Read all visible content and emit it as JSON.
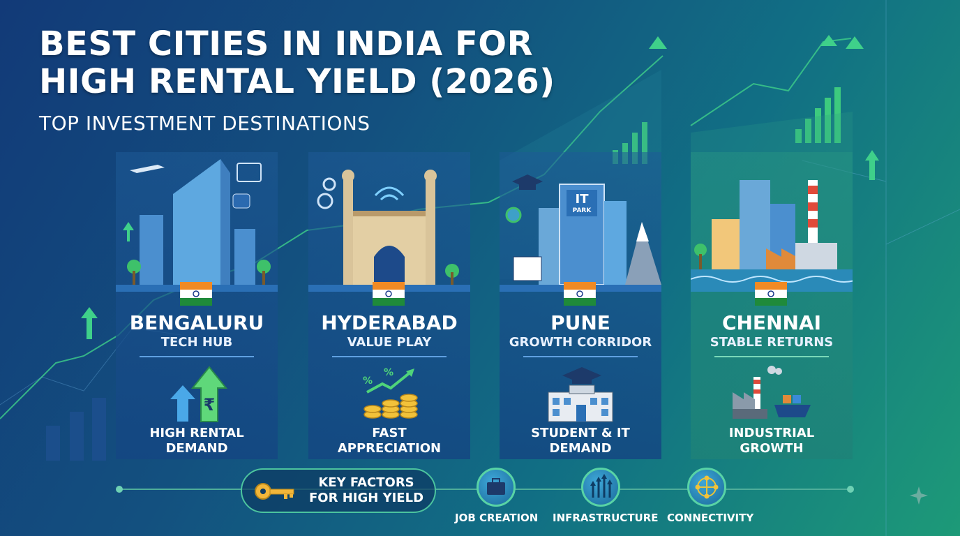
{
  "header": {
    "title_line1": "BEST CITIES IN INDIA FOR",
    "title_line2": "HIGH RENTAL YIELD (2026)",
    "subtitle": "TOP INVESTMENT DESTINATIONS"
  },
  "cities": [
    {
      "name": "BENGALURU",
      "tagline": "TECH HUB",
      "feature_line1": "HIGH RENTAL",
      "feature_line2": "DEMAND",
      "icon": "rupee-arrows-icon"
    },
    {
      "name": "HYDERABAD",
      "tagline": "VALUE PLAY",
      "feature_line1": "FAST",
      "feature_line2": "APPRECIATION",
      "icon": "coins-growth-icon"
    },
    {
      "name": "PUNE",
      "tagline": "GROWTH CORRIDOR",
      "feature_line1": "STUDENT & IT",
      "feature_line2": "DEMAND",
      "icon": "campus-icon"
    },
    {
      "name": "CHENNAI",
      "tagline": "STABLE RETURNS",
      "feature_line1": "INDUSTRIAL",
      "feature_line2": "GROWTH",
      "icon": "factory-ship-icon"
    }
  ],
  "pune_sign": {
    "line1": "IT",
    "line2": "PARK"
  },
  "key_factors": {
    "label_line1": "KEY FACTORS",
    "label_line2": "FOR HIGH YIELD",
    "icon": "key-icon",
    "items": [
      {
        "label": "JOB CREATION",
        "icon": "briefcase-icon"
      },
      {
        "label": "INFRASTRUCTURE",
        "icon": "growth-arrows-icon"
      },
      {
        "label": "CONNECTIVITY",
        "icon": "network-globe-icon"
      }
    ]
  },
  "colors": {
    "accent_green": "#4cc49e",
    "flag_saffron": "#f08a24",
    "flag_green": "#1f8a3a",
    "flag_chakra": "#1a3a8a"
  }
}
